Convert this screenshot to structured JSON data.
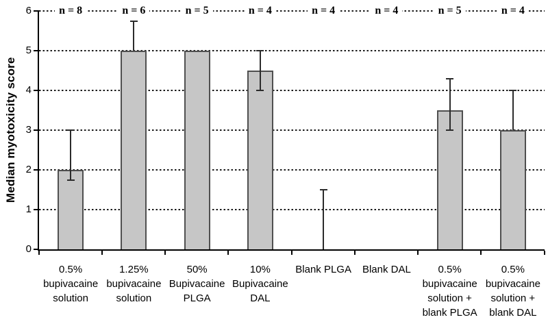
{
  "chart_data": {
    "type": "bar",
    "title": "",
    "ylabel": "Median myotoxicity score",
    "xlabel": "",
    "ylim": [
      0,
      6
    ],
    "yticks": [
      "0",
      "1",
      "2",
      "3",
      "4",
      "5",
      "6"
    ],
    "grid_values": [
      1,
      2,
      3,
      4,
      5,
      6
    ],
    "grid_style": "dotted horizontal",
    "legend_position": "none",
    "n_labels": [
      "n = 8",
      "n = 6",
      "n = 5",
      "n = 4",
      "n = 4",
      "n = 4",
      "n = 5",
      "n = 4"
    ],
    "categories": [
      [
        "0.5%",
        "bupivacaine",
        "solution"
      ],
      [
        "1.25%",
        "bupivacaine",
        "solution"
      ],
      [
        "50%",
        "Bupivacaine",
        "PLGA"
      ],
      [
        "10%",
        "Bupivacaine",
        "DAL"
      ],
      [
        "Blank PLGA"
      ],
      [
        "Blank DAL"
      ],
      [
        "0.5%",
        "bupivacaine",
        "solution +",
        "blank PLGA"
      ],
      [
        "0.5%",
        "bupivacaine",
        "solution +",
        "blank DAL"
      ]
    ],
    "values": [
      2,
      5,
      5,
      4.5,
      0,
      0,
      3.5,
      3
    ],
    "error_bars": [
      {
        "low": 1.75,
        "high": 3,
        "cap_low": true,
        "cap_high": true
      },
      {
        "low": 5,
        "high": 5.75,
        "cap_low": false,
        "cap_high": true
      },
      null,
      {
        "low": 4,
        "high": 5,
        "cap_low": true,
        "cap_high": true
      },
      {
        "low": 0,
        "high": 1.5,
        "cap_low": false,
        "cap_high": true
      },
      null,
      {
        "low": 3,
        "high": 4.3,
        "cap_low": true,
        "cap_high": true
      },
      {
        "low": 3,
        "high": 4,
        "cap_low": false,
        "cap_high": true
      }
    ],
    "colors": {
      "bar_fill": "#c6c6c6",
      "bar_border": "#4f4f4f",
      "axis": "#000000",
      "grid": "#1a1a1a",
      "error_bar": "#2b2b2b",
      "text": "#000000",
      "background": "#ffffff"
    }
  }
}
